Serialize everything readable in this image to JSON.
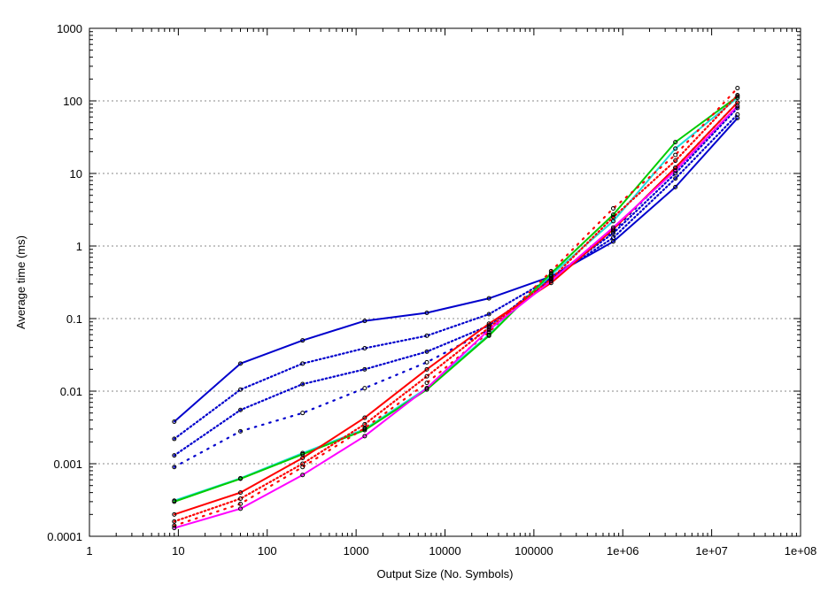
{
  "chart_data": {
    "type": "line",
    "xlabel": "Output Size (No. Symbols)",
    "ylabel": "Average time (ms)",
    "x_scale": "log",
    "y_scale": "log",
    "xlim": [
      1,
      100000000
    ],
    "ylim": [
      0.0001,
      1000
    ],
    "x_ticks": [
      "1",
      "10",
      "100",
      "1000",
      "10000",
      "100000",
      "1e+06",
      "1e+07",
      "1e+08"
    ],
    "y_ticks": [
      "0.0001",
      "0.001",
      "0.01",
      "0.1",
      "1",
      "10",
      "100",
      "1000"
    ],
    "grid": "horizontal dotted",
    "legend": "none",
    "x": [
      9,
      50,
      250,
      1250,
      6250,
      31250,
      156250,
      781250,
      3906250,
      19531250
    ],
    "series": [
      {
        "color": "#0000cc",
        "style": "solid",
        "values": [
          0.0038,
          0.024,
          0.05,
          0.093,
          0.12,
          0.19,
          0.38,
          1.15,
          6.5,
          58
        ]
      },
      {
        "color": "#0000cc",
        "style": "dotted",
        "values": [
          0.0022,
          0.0105,
          0.024,
          0.039,
          0.058,
          0.115,
          0.36,
          1.3,
          8.5,
          65
        ]
      },
      {
        "color": "#0000cc",
        "style": "dotted",
        "values": [
          0.0013,
          0.0055,
          0.0125,
          0.02,
          0.035,
          0.08,
          0.36,
          1.5,
          10,
          80
        ]
      },
      {
        "color": "#0000cc",
        "style": "dotted-sparse",
        "values": [
          0.0009,
          0.0028,
          0.005,
          0.011,
          0.025,
          0.07,
          0.35,
          1.6,
          12,
          95
        ]
      },
      {
        "color": "#22dddd",
        "style": "solid",
        "values": [
          0.00031,
          0.00063,
          0.0014,
          0.003,
          0.011,
          0.06,
          0.4,
          2.2,
          22,
          110
        ]
      },
      {
        "color": "#00cc00",
        "style": "solid",
        "values": [
          0.0003,
          0.00062,
          0.00135,
          0.0029,
          0.0105,
          0.058,
          0.42,
          2.7,
          27,
          115
        ]
      },
      {
        "color": "#ff0000",
        "style": "solid",
        "values": [
          0.0002,
          0.0004,
          0.0012,
          0.0043,
          0.02,
          0.085,
          0.31,
          1.7,
          12,
          95
        ]
      },
      {
        "color": "#ff0000",
        "style": "dotted",
        "values": [
          0.00016,
          0.00033,
          0.001,
          0.0035,
          0.016,
          0.075,
          0.35,
          2.5,
          15,
          120
        ]
      },
      {
        "color": "#ff0000",
        "style": "dotted-sparse",
        "values": [
          0.00014,
          0.00028,
          0.0009,
          0.0031,
          0.013,
          0.065,
          0.45,
          3.3,
          18,
          150
        ]
      },
      {
        "color": "#ff00ff",
        "style": "solid",
        "values": [
          0.00013,
          0.00024,
          0.0007,
          0.0024,
          0.011,
          0.07,
          0.33,
          1.8,
          11,
          85
        ]
      }
    ]
  }
}
